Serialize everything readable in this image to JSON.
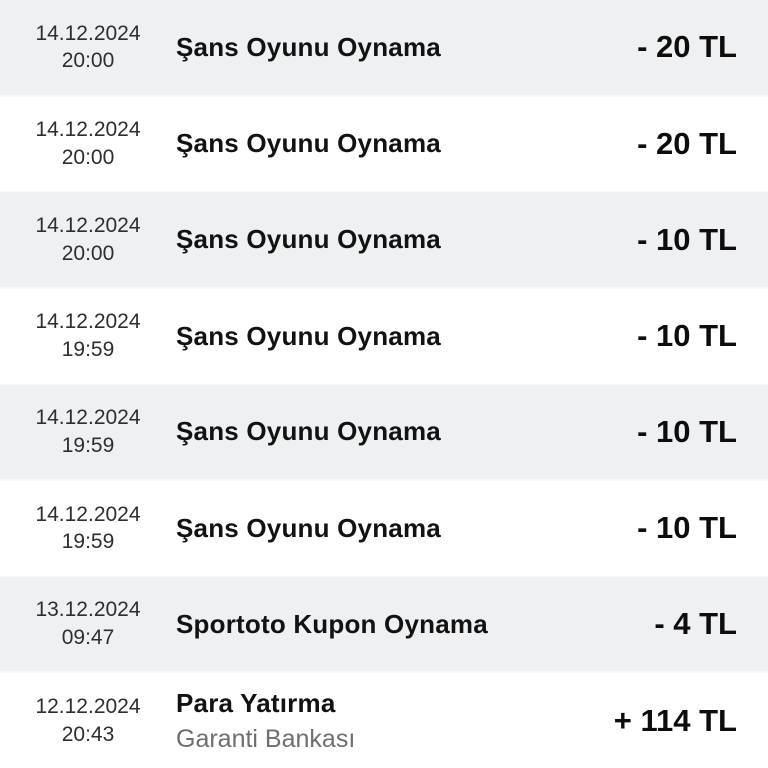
{
  "colors": {
    "row-bg": "#ffffff",
    "row-alt-bg": "#eef0f2",
    "separator": "#f8f9fa",
    "date-text": "#2e2e2e",
    "title-text": "#121212",
    "subtitle-text": "#6e6e6e",
    "amount-text": "#0d0d0d"
  },
  "transactions": [
    {
      "date": "14.12.2024",
      "time": "20:00",
      "title": "Şans Oyunu Oynama",
      "amount": "- 20 TL"
    },
    {
      "date": "14.12.2024",
      "time": "20:00",
      "title": "Şans Oyunu Oynama",
      "amount": "- 20 TL"
    },
    {
      "date": "14.12.2024",
      "time": "20:00",
      "title": "Şans Oyunu Oynama",
      "amount": "- 10 TL"
    },
    {
      "date": "14.12.2024",
      "time": "19:59",
      "title": "Şans Oyunu Oynama",
      "amount": "- 10 TL"
    },
    {
      "date": "14.12.2024",
      "time": "19:59",
      "title": "Şans Oyunu Oynama",
      "amount": "- 10 TL"
    },
    {
      "date": "14.12.2024",
      "time": "19:59",
      "title": "Şans Oyunu Oynama",
      "amount": "- 10 TL"
    },
    {
      "date": "13.12.2024",
      "time": "09:47",
      "title": "Sportoto Kupon Oynama",
      "amount": "- 4 TL"
    },
    {
      "date": "12.12.2024",
      "time": "20:43",
      "title": "Para Yatırma",
      "subtitle": "Garanti Bankası",
      "amount": "+ 114 TL"
    }
  ]
}
